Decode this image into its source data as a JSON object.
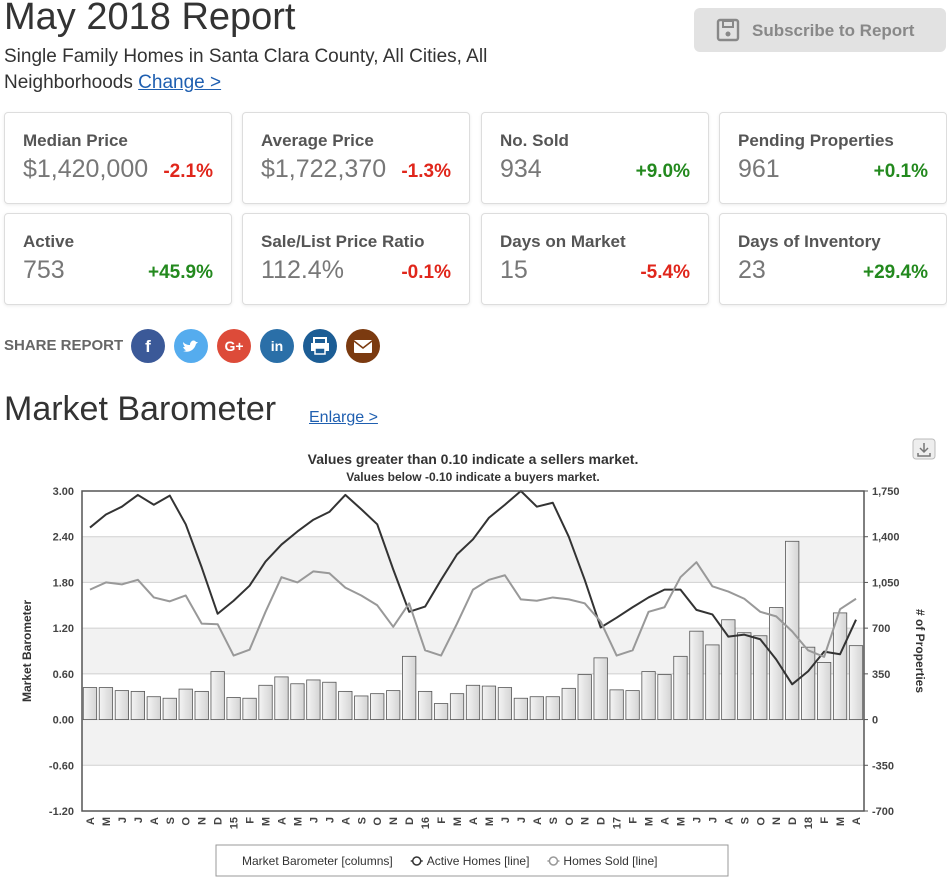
{
  "header": {
    "title": "May 2018 Report",
    "subtitle": "Single Family Homes in Santa Clara County, All Cities, All Neighborhoods",
    "change_link": "Change >",
    "subscribe": "Subscribe to Report"
  },
  "stats": [
    {
      "label": "Median Price",
      "value": "$1,420,000",
      "change": "-2.1%",
      "change_color": "#e0261b"
    },
    {
      "label": "Average Price",
      "value": "$1,722,370",
      "change": "-1.3%",
      "change_color": "#e0261b"
    },
    {
      "label": "No. Sold",
      "value": "934",
      "change": "+9.0%",
      "change_color": "#23891e"
    },
    {
      "label": "Pending Properties",
      "value": "961",
      "change": "+0.1%",
      "change_color": "#23891e"
    },
    {
      "label": "Active",
      "value": "753",
      "change": "+45.9%",
      "change_color": "#23891e"
    },
    {
      "label": "Sale/List Price Ratio",
      "value": "112.4%",
      "change": "-0.1%",
      "change_color": "#e0261b"
    },
    {
      "label": "Days on Market",
      "value": "15",
      "change": "-5.4%",
      "change_color": "#e0261b"
    },
    {
      "label": "Days of Inventory",
      "value": "23",
      "change": "+29.4%",
      "change_color": "#23891e"
    }
  ],
  "share": {
    "label": "SHARE REPORT",
    "icons": [
      "f",
      "G+",
      "in"
    ]
  },
  "section": {
    "title": "Market Barometer",
    "link": "Enlarge >"
  },
  "chart_data": {
    "type": "combo",
    "title": "Values greater than 0.10 indicate a sellers market.",
    "subtitle": "Values below -0.10 indicate a buyers market.",
    "y_label": "Market Barometer",
    "y2_label": "# of Properties",
    "categories": [
      "A",
      "M",
      "J",
      "J",
      "A",
      "S",
      "O",
      "N",
      "D",
      "15",
      "F",
      "M",
      "A",
      "M",
      "J",
      "J",
      "A",
      "S",
      "O",
      "N",
      "D",
      "16",
      "F",
      "M",
      "A",
      "M",
      "J",
      "J",
      "A",
      "S",
      "O",
      "N",
      "D",
      "17",
      "F",
      "M",
      "A",
      "M",
      "J",
      "J",
      "A",
      "S",
      "O",
      "N",
      "D",
      "18",
      "F",
      "M",
      "A"
    ],
    "series": [
      {
        "name": "Market Barometer [columns]",
        "type": "bar",
        "axis": "y",
        "color": "#d4d4d4",
        "values": [
          0.42,
          0.42,
          0.38,
          0.37,
          0.3,
          0.28,
          0.4,
          0.37,
          0.63,
          0.29,
          0.28,
          0.45,
          0.56,
          0.47,
          0.52,
          0.49,
          0.37,
          0.31,
          0.34,
          0.38,
          0.83,
          0.37,
          0.21,
          0.34,
          0.45,
          0.44,
          0.42,
          0.28,
          0.3,
          0.3,
          0.41,
          0.59,
          0.81,
          0.39,
          0.38,
          0.63,
          0.59,
          0.83,
          1.16,
          0.98,
          1.31,
          1.14,
          1.1,
          1.47,
          2.34,
          0.95,
          0.75,
          1.4,
          0.97
        ]
      },
      {
        "name": "Active Homes [line]",
        "type": "line",
        "axis": "y2",
        "color": "#333333",
        "values": [
          1470,
          1570,
          1630,
          1720,
          1645,
          1715,
          1495,
          1165,
          810,
          910,
          1025,
          1210,
          1340,
          1440,
          1530,
          1590,
          1720,
          1610,
          1495,
          1150,
          825,
          865,
          1070,
          1265,
          1380,
          1545,
          1645,
          1750,
          1630,
          1660,
          1400,
          1070,
          705,
          780,
          860,
          935,
          995,
          995,
          840,
          805,
          635,
          650,
          615,
          460,
          270,
          370,
          520,
          500,
          765
        ]
      },
      {
        "name": "Homes Sold [line]",
        "type": "line",
        "axis": "y2",
        "color": "#999999",
        "values": [
          995,
          1050,
          1035,
          1070,
          935,
          905,
          950,
          735,
          730,
          490,
          535,
          825,
          1090,
          1050,
          1135,
          1120,
          1010,
          950,
          875,
          710,
          890,
          530,
          490,
          735,
          995,
          1070,
          1105,
          920,
          910,
          935,
          920,
          890,
          750,
          490,
          530,
          825,
          860,
          1090,
          1205,
          1020,
          980,
          925,
          825,
          790,
          675,
          530,
          480,
          845,
          925
        ]
      }
    ],
    "ylim": [
      -1.2,
      3
    ],
    "yticks": [
      {
        "value": 3,
        "label": "3.00"
      },
      {
        "value": 2.4,
        "label": "2.40"
      },
      {
        "value": 1.8,
        "label": "1.80"
      },
      {
        "value": 1.2,
        "label": "1.20"
      },
      {
        "value": 0.6,
        "label": "0.60"
      },
      {
        "value": 0,
        "label": "0.00"
      },
      {
        "value": -0.6,
        "label": "-0.60"
      },
      {
        "value": -1.2,
        "label": "-1.20"
      }
    ],
    "y2lim": [
      -700,
      1750
    ],
    "y2ticks": [
      {
        "value": 1750,
        "label": "1,750"
      },
      {
        "value": 1400,
        "label": "1,400"
      },
      {
        "value": 1050,
        "label": "1,050"
      },
      700,
      350,
      0,
      -350,
      -700
    ],
    "grid": true
  }
}
